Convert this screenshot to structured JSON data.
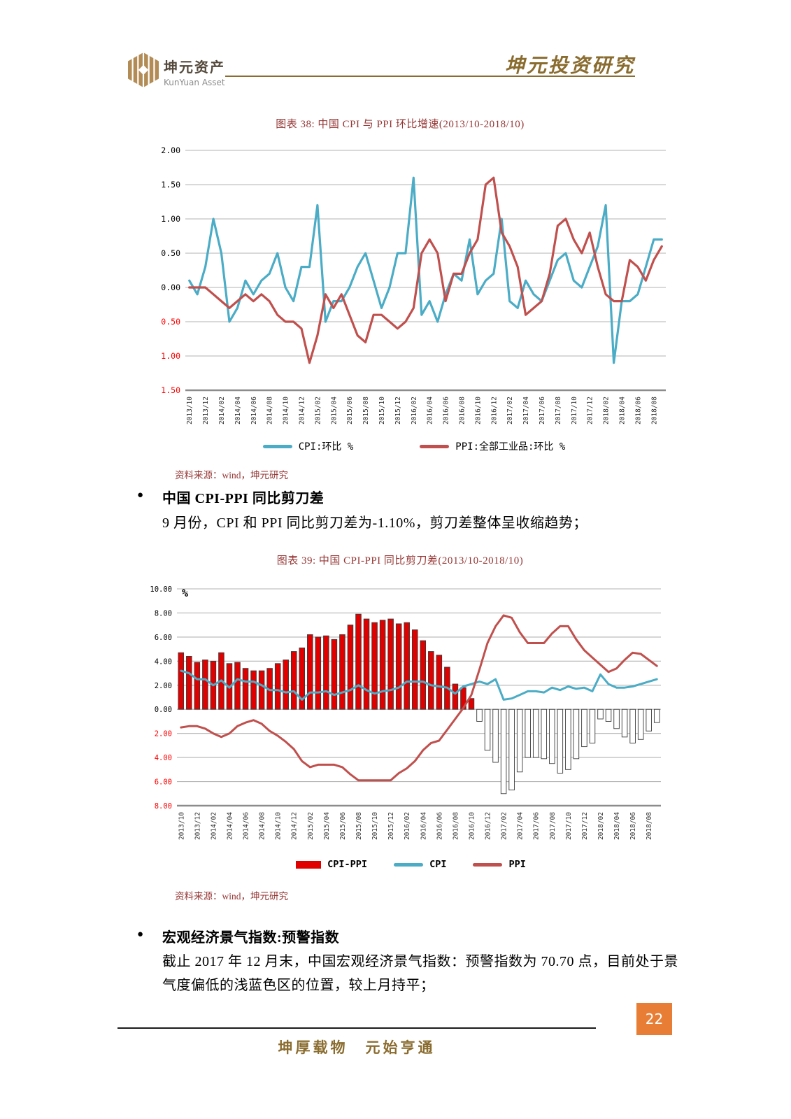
{
  "header": {
    "logo_cn": "坤元资产",
    "logo_en": "KunYuan Asset",
    "title": "坤元投资研究"
  },
  "figure38": {
    "source": "资料来源：wind，坤元研究"
  },
  "figure39": {
    "source": "资料来源：wind，坤元研究"
  },
  "sections": [
    {
      "bullet": "●",
      "heading": "中国 CPI-PPI 同比剪刀差",
      "body": "9 月份，CPI 和 PPI 同比剪刀差为-1.10%，剪刀差整体呈收缩趋势；"
    },
    {
      "bullet": "●",
      "heading": "宏观经济景气指数:预警指数",
      "body_line1": "截止 2017 年 12 月末，中国宏观经济景气指数：预警指数为 70.70 点，目前处于景",
      "body_line2": "气度偏低的浅蓝色区的位置，较上月持平；"
    }
  ],
  "footer": {
    "motto": "坤厚载物　元始亨通",
    "page_number": "22"
  },
  "colors": {
    "brand_gold": "#8a6c2f",
    "logo_gold": "#b28b55",
    "title_dark_red": "#943634",
    "page_badge_orange": "#e87e36",
    "cpi_blue": "#4BACC6",
    "ppi_brick_red": "#C0504D",
    "bar_bright_red": "#E00000",
    "negative_tick_red": "#FF0000"
  },
  "chart_data": [
    {
      "type": "line",
      "title": "图表 38: 中国 CPI 与 PPI 环比增速(2013/10-2018/10)",
      "xlabel": "",
      "ylabel": "",
      "ylim": [
        -1.5,
        2.0
      ],
      "ytick_step": 0.5,
      "grid": true,
      "legend_position": "bottom",
      "negative_ticks_shown_as": "red absolute value",
      "x_tick_every": 2,
      "x_tick_labels": [
        "2013/10",
        "2013/12",
        "2014/02",
        "2014/04",
        "2014/06",
        "2014/08",
        "2014/10",
        "2014/12",
        "2015/02",
        "2015/04",
        "2015/06",
        "2015/08",
        "2015/10",
        "2015/12",
        "2016/02",
        "2016/04",
        "2016/06",
        "2016/08",
        "2016/10",
        "2016/12",
        "2017/02",
        "2017/04",
        "2017/06",
        "2017/08",
        "2017/10",
        "2017/12",
        "2018/02",
        "2018/04",
        "2018/06",
        "2018/08"
      ],
      "x": [
        "2013/10",
        "2013/11",
        "2013/12",
        "2014/01",
        "2014/02",
        "2014/03",
        "2014/04",
        "2014/05",
        "2014/06",
        "2014/07",
        "2014/08",
        "2014/09",
        "2014/10",
        "2014/11",
        "2014/12",
        "2015/01",
        "2015/02",
        "2015/03",
        "2015/04",
        "2015/05",
        "2015/06",
        "2015/07",
        "2015/08",
        "2015/09",
        "2015/10",
        "2015/11",
        "2015/12",
        "2016/01",
        "2016/02",
        "2016/03",
        "2016/04",
        "2016/05",
        "2016/06",
        "2016/07",
        "2016/08",
        "2016/09",
        "2016/10",
        "2016/11",
        "2016/12",
        "2017/01",
        "2017/02",
        "2017/03",
        "2017/04",
        "2017/05",
        "2017/06",
        "2017/07",
        "2017/08",
        "2017/09",
        "2017/10",
        "2017/11",
        "2017/12",
        "2018/01",
        "2018/02",
        "2018/03",
        "2018/04",
        "2018/05",
        "2018/06",
        "2018/07",
        "2018/08",
        "2018/09"
      ],
      "series": [
        {
          "name": "CPI:环比 %",
          "color": "#4BACC6",
          "values": [
            0.1,
            -0.1,
            0.3,
            1.0,
            0.5,
            -0.5,
            -0.3,
            0.1,
            -0.1,
            0.1,
            0.2,
            0.5,
            0.0,
            -0.2,
            0.3,
            0.3,
            1.2,
            -0.5,
            -0.2,
            -0.2,
            0.0,
            0.3,
            0.5,
            0.1,
            -0.3,
            0.0,
            0.5,
            0.5,
            1.6,
            -0.4,
            -0.2,
            -0.5,
            -0.1,
            0.2,
            0.1,
            0.7,
            -0.1,
            0.1,
            0.2,
            1.0,
            -0.2,
            -0.3,
            0.1,
            -0.1,
            -0.2,
            0.1,
            0.4,
            0.5,
            0.1,
            0.0,
            0.3,
            0.6,
            1.2,
            -1.1,
            -0.2,
            -0.2,
            -0.1,
            0.3,
            0.7,
            0.7
          ]
        },
        {
          "name": "PPI:全部工业品:环比 %",
          "color": "#C0504D",
          "values": [
            0.0,
            0.0,
            0.0,
            -0.1,
            -0.2,
            -0.3,
            -0.2,
            -0.1,
            -0.2,
            -0.1,
            -0.2,
            -0.4,
            -0.5,
            -0.5,
            -0.6,
            -1.1,
            -0.7,
            -0.1,
            -0.3,
            -0.1,
            -0.4,
            -0.7,
            -0.8,
            -0.4,
            -0.4,
            -0.5,
            -0.6,
            -0.5,
            -0.3,
            0.5,
            0.7,
            0.5,
            -0.2,
            0.2,
            0.2,
            0.5,
            0.7,
            1.5,
            1.6,
            0.8,
            0.6,
            0.3,
            -0.4,
            -0.3,
            -0.2,
            0.2,
            0.9,
            1.0,
            0.7,
            0.5,
            0.8,
            0.3,
            -0.1,
            -0.2,
            -0.2,
            0.4,
            0.3,
            0.1,
            0.4,
            0.6
          ]
        }
      ]
    },
    {
      "type": "bar",
      "combo": "bar + line",
      "title": "图表 39: 中国 CPI-PPI 同比剪刀差(2013/10-2018/10)",
      "xlabel": "",
      "ylabel": "%",
      "ylim": [
        -8,
        10
      ],
      "ytick_step": 2,
      "grid": true,
      "legend_position": "bottom",
      "negative_ticks_shown_as": "red absolute value",
      "x_tick_every": 2,
      "x_tick_labels": [
        "2013/10",
        "2013/12",
        "2014/02",
        "2014/04",
        "2014/06",
        "2014/08",
        "2014/10",
        "2014/12",
        "2015/02",
        "2015/04",
        "2015/06",
        "2015/08",
        "2015/10",
        "2015/12",
        "2016/02",
        "2016/04",
        "2016/06",
        "2016/08",
        "2016/10",
        "2016/12",
        "2017/02",
        "2017/04",
        "2017/06",
        "2017/08",
        "2017/10",
        "2017/12",
        "2018/02",
        "2018/04",
        "2018/06",
        "2018/08"
      ],
      "x": [
        "2013/10",
        "2013/11",
        "2013/12",
        "2014/01",
        "2014/02",
        "2014/03",
        "2014/04",
        "2014/05",
        "2014/06",
        "2014/07",
        "2014/08",
        "2014/09",
        "2014/10",
        "2014/11",
        "2014/12",
        "2015/01",
        "2015/02",
        "2015/03",
        "2015/04",
        "2015/05",
        "2015/06",
        "2015/07",
        "2015/08",
        "2015/09",
        "2015/10",
        "2015/11",
        "2015/12",
        "2016/01",
        "2016/02",
        "2016/03",
        "2016/04",
        "2016/05",
        "2016/06",
        "2016/07",
        "2016/08",
        "2016/09",
        "2016/10",
        "2016/11",
        "2016/12",
        "2017/01",
        "2017/02",
        "2017/03",
        "2017/04",
        "2017/05",
        "2017/06",
        "2017/07",
        "2017/08",
        "2017/09",
        "2017/10",
        "2017/11",
        "2017/12",
        "2018/01",
        "2018/02",
        "2018/03",
        "2018/04",
        "2018/05",
        "2018/06",
        "2018/07",
        "2018/08",
        "2018/09"
      ],
      "bars": {
        "name": "CPI-PPI",
        "color": "#E00000",
        "negative_fill": "#FFFFFF",
        "values": [
          4.7,
          4.4,
          3.9,
          4.1,
          4.0,
          4.7,
          3.8,
          3.9,
          3.4,
          3.2,
          3.2,
          3.4,
          3.8,
          4.1,
          4.8,
          5.1,
          6.2,
          6.0,
          6.1,
          5.8,
          6.2,
          7.0,
          7.9,
          7.5,
          7.2,
          7.4,
          7.5,
          7.1,
          7.2,
          6.6,
          5.7,
          4.8,
          4.5,
          3.5,
          2.1,
          1.8,
          0.9,
          -1.0,
          -3.4,
          -4.4,
          -7.0,
          -6.7,
          -5.2,
          -4.0,
          -4.0,
          -4.1,
          -4.5,
          -5.3,
          -5.0,
          -4.1,
          -3.1,
          -2.8,
          -0.8,
          -1.0,
          -1.6,
          -2.3,
          -2.8,
          -2.5,
          -1.8,
          -1.1
        ]
      },
      "series": [
        {
          "name": "CPI",
          "color": "#4BACC6",
          "values": [
            3.2,
            3.0,
            2.5,
            2.5,
            2.0,
            2.4,
            1.8,
            2.5,
            2.3,
            2.3,
            2.0,
            1.6,
            1.6,
            1.4,
            1.5,
            0.8,
            1.4,
            1.4,
            1.5,
            1.2,
            1.4,
            1.6,
            2.0,
            1.6,
            1.3,
            1.5,
            1.6,
            1.8,
            2.3,
            2.3,
            2.3,
            2.0,
            1.9,
            1.8,
            1.3,
            1.9,
            2.1,
            2.3,
            2.1,
            2.5,
            0.8,
            0.9,
            1.2,
            1.5,
            1.5,
            1.4,
            1.8,
            1.6,
            1.9,
            1.7,
            1.8,
            1.5,
            2.9,
            2.1,
            1.8,
            1.8,
            1.9,
            2.1,
            2.3,
            2.5
          ]
        },
        {
          "name": "PPI",
          "color": "#C0504D",
          "values": [
            -1.5,
            -1.4,
            -1.4,
            -1.6,
            -2.0,
            -2.3,
            -2.0,
            -1.4,
            -1.1,
            -0.9,
            -1.2,
            -1.8,
            -2.2,
            -2.7,
            -3.3,
            -4.3,
            -4.8,
            -4.6,
            -4.6,
            -4.6,
            -4.8,
            -5.4,
            -5.9,
            -5.9,
            -5.9,
            -5.9,
            -5.9,
            -5.3,
            -4.9,
            -4.3,
            -3.4,
            -2.8,
            -2.6,
            -1.7,
            -0.8,
            0.1,
            1.2,
            3.3,
            5.5,
            6.9,
            7.8,
            7.6,
            6.4,
            5.5,
            5.5,
            5.5,
            6.3,
            6.9,
            6.9,
            5.8,
            4.9,
            4.3,
            3.7,
            3.1,
            3.4,
            4.1,
            4.7,
            4.6,
            4.1,
            3.6
          ]
        }
      ]
    }
  ]
}
